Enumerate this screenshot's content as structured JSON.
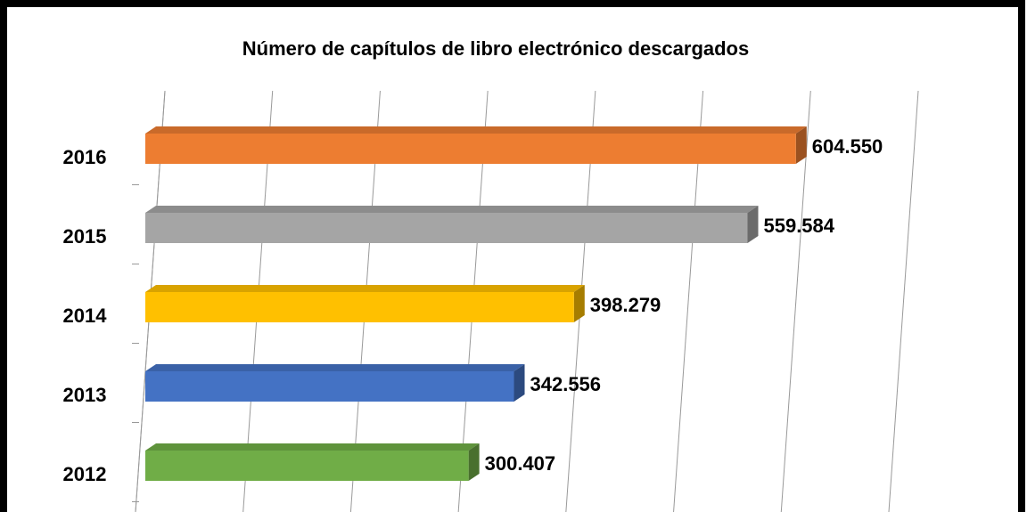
{
  "chart_data": {
    "type": "bar",
    "orientation": "horizontal",
    "title": "Número de capítulos de libro electrónico descargados",
    "categories": [
      "2012",
      "2013",
      "2014",
      "2015",
      "2016"
    ],
    "values": [
      300407,
      342556,
      398279,
      559584,
      604550
    ],
    "value_labels": [
      "300.407",
      "342.556",
      "398.279",
      "559.584",
      "604.550"
    ],
    "colors": [
      "#70ad47",
      "#4472c4",
      "#ffc000",
      "#a5a5a5",
      "#ed7d31"
    ],
    "xlim": [
      0,
      700000
    ],
    "xticks": [
      0,
      100000,
      200000,
      300000,
      400000,
      500000,
      600000,
      700000
    ],
    "grid": true
  }
}
